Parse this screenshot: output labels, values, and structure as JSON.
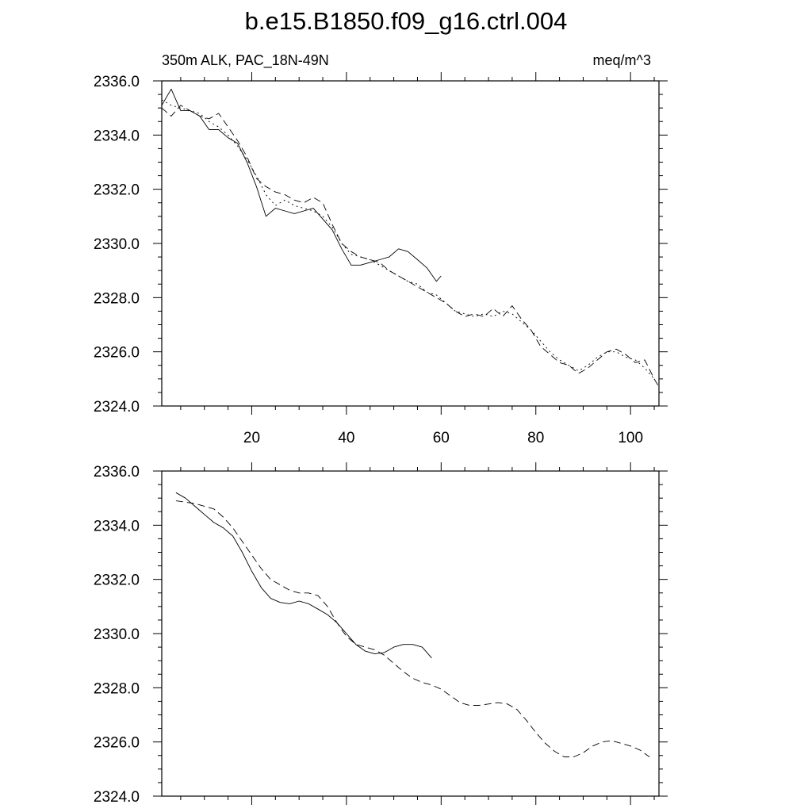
{
  "figure_title": "b.e15.B1850.f09_g16.ctrl.004",
  "chart_data": [
    {
      "type": "line",
      "title_left": "350m ALK, PAC_18N-49N",
      "title_right": "meq/m^3",
      "xlim": [
        1,
        106
      ],
      "ylim": [
        2324.0,
        2336.0
      ],
      "x_ticks": [
        20,
        40,
        60,
        80,
        100
      ],
      "x_tick_labels": [
        "20",
        "40",
        "60",
        "80",
        "100"
      ],
      "show_x_tick_labels": true,
      "y_ticks": [
        2324.0,
        2326.0,
        2328.0,
        2330.0,
        2332.0,
        2334.0,
        2336.0
      ],
      "y_tick_labels": [
        "2324.0",
        "2326.0",
        "2328.0",
        "2330.0",
        "2332.0",
        "2334.0",
        "2336.0"
      ],
      "grid": false,
      "series": [
        {
          "style": "solid",
          "x": [
            1,
            3,
            5,
            7,
            9,
            11,
            13,
            15,
            17,
            19,
            21,
            23,
            25,
            27,
            29,
            31,
            33,
            35,
            37,
            39,
            41,
            43,
            45,
            47,
            49,
            51,
            53,
            55,
            57,
            59,
            60
          ],
          "y": [
            2335.1,
            2335.7,
            2334.9,
            2334.9,
            2334.7,
            2334.2,
            2334.2,
            2333.9,
            2333.7,
            2333.0,
            2332.1,
            2331.0,
            2331.3,
            2331.2,
            2331.1,
            2331.2,
            2331.3,
            2330.9,
            2330.5,
            2329.8,
            2329.2,
            2329.2,
            2329.3,
            2329.4,
            2329.5,
            2329.8,
            2329.7,
            2329.4,
            2329.1,
            2328.6,
            2328.8
          ]
        },
        {
          "style": "dashed",
          "x": [
            1,
            3,
            5,
            7,
            9,
            11,
            13,
            15,
            17,
            19,
            21,
            23,
            25,
            27,
            29,
            31,
            33,
            35,
            37,
            39,
            41,
            43,
            45,
            47,
            49,
            51,
            53,
            55,
            57,
            59,
            61,
            63,
            65,
            67,
            69,
            71,
            73,
            75,
            77,
            79,
            81,
            83,
            85,
            87,
            89,
            91,
            93,
            95,
            97,
            99,
            101,
            103,
            105,
            106
          ],
          "y": [
            2335.0,
            2334.7,
            2335.1,
            2334.9,
            2334.7,
            2334.6,
            2334.8,
            2334.3,
            2333.8,
            2333.2,
            2332.4,
            2332.1,
            2331.9,
            2331.8,
            2331.6,
            2331.5,
            2331.7,
            2331.5,
            2330.7,
            2330.0,
            2329.7,
            2329.5,
            2329.4,
            2329.3,
            2329.0,
            2328.8,
            2328.6,
            2328.4,
            2328.2,
            2328.0,
            2327.8,
            2327.5,
            2327.3,
            2327.4,
            2327.3,
            2327.6,
            2327.3,
            2327.7,
            2327.2,
            2326.8,
            2326.2,
            2325.9,
            2325.6,
            2325.5,
            2325.2,
            2325.4,
            2325.7,
            2326.0,
            2326.1,
            2325.9,
            2325.6,
            2325.7,
            2325.0,
            2324.7
          ]
        },
        {
          "style": "dotted",
          "x": [
            1,
            3,
            5,
            7,
            9,
            11,
            13,
            15,
            17,
            19,
            21,
            23,
            25,
            27,
            29,
            31,
            33,
            35,
            37,
            39,
            41,
            43,
            45,
            47,
            49,
            51,
            53,
            55,
            57,
            59,
            61,
            63,
            65,
            67,
            69,
            71,
            73,
            75,
            77,
            79,
            81,
            83,
            85,
            87,
            89,
            91,
            93,
            95,
            97,
            99,
            101,
            103,
            105
          ],
          "y": [
            2335.3,
            2335.1,
            2335.0,
            2334.9,
            2334.8,
            2334.5,
            2334.3,
            2334.0,
            2333.6,
            2333.1,
            2332.5,
            2331.8,
            2331.4,
            2331.6,
            2331.4,
            2331.3,
            2331.2,
            2331.0,
            2330.6,
            2330.0,
            2329.6,
            2329.5,
            2329.4,
            2329.2,
            2329.0,
            2328.8,
            2328.6,
            2328.5,
            2328.2,
            2328.1,
            2327.8,
            2327.5,
            2327.4,
            2327.3,
            2327.4,
            2327.3,
            2327.5,
            2327.4,
            2327.1,
            2326.8,
            2326.4,
            2326.0,
            2325.7,
            2325.5,
            2325.3,
            2325.5,
            2325.8,
            2326.0,
            2326.0,
            2325.8,
            2325.7,
            2325.4,
            2325.0
          ]
        }
      ]
    },
    {
      "type": "line",
      "title_left": "",
      "title_right": "",
      "xlim": [
        1,
        106
      ],
      "ylim": [
        2324.0,
        2336.0
      ],
      "x_ticks": [
        20,
        40,
        60,
        80,
        100
      ],
      "x_tick_labels": [],
      "show_x_tick_labels": false,
      "y_ticks": [
        2324.0,
        2326.0,
        2328.0,
        2330.0,
        2332.0,
        2334.0,
        2336.0
      ],
      "y_tick_labels": [
        "2324.0",
        "2326.0",
        "2328.0",
        "2330.0",
        "2332.0",
        "2334.0",
        "2336.0"
      ],
      "grid": false,
      "series": [
        {
          "style": "solid",
          "x": [
            4,
            6,
            8,
            10,
            12,
            14,
            16,
            18,
            20,
            22,
            24,
            26,
            28,
            30,
            32,
            34,
            36,
            38,
            40,
            42,
            44,
            46,
            48,
            50,
            52,
            54,
            56,
            58
          ],
          "y": [
            2335.2,
            2335.0,
            2334.7,
            2334.4,
            2334.1,
            2333.9,
            2333.6,
            2333.0,
            2332.3,
            2331.7,
            2331.3,
            2331.15,
            2331.1,
            2331.2,
            2331.1,
            2330.9,
            2330.7,
            2330.4,
            2330.0,
            2329.6,
            2329.35,
            2329.25,
            2329.3,
            2329.5,
            2329.6,
            2329.6,
            2329.5,
            2329.1
          ]
        },
        {
          "style": "dashed",
          "x": [
            4,
            6,
            8,
            10,
            12,
            14,
            16,
            18,
            20,
            22,
            24,
            26,
            28,
            30,
            32,
            34,
            36,
            38,
            40,
            42,
            44,
            46,
            48,
            50,
            52,
            54,
            56,
            58,
            60,
            62,
            64,
            66,
            68,
            70,
            72,
            74,
            76,
            78,
            80,
            82,
            84,
            86,
            88,
            90,
            92,
            94,
            96,
            98,
            100,
            102,
            104
          ],
          "y": [
            2334.9,
            2334.85,
            2334.8,
            2334.7,
            2334.6,
            2334.3,
            2333.9,
            2333.4,
            2332.9,
            2332.4,
            2332.0,
            2331.8,
            2331.6,
            2331.5,
            2331.5,
            2331.4,
            2331.0,
            2330.4,
            2329.9,
            2329.6,
            2329.5,
            2329.4,
            2329.2,
            2328.9,
            2328.6,
            2328.35,
            2328.2,
            2328.1,
            2327.95,
            2327.7,
            2327.45,
            2327.35,
            2327.35,
            2327.4,
            2327.45,
            2327.4,
            2327.2,
            2326.8,
            2326.35,
            2325.95,
            2325.65,
            2325.45,
            2325.45,
            2325.6,
            2325.85,
            2326.0,
            2326.05,
            2325.95,
            2325.85,
            2325.7,
            2325.45
          ]
        }
      ]
    }
  ]
}
